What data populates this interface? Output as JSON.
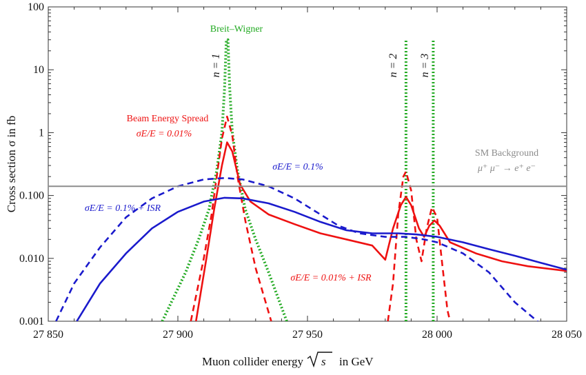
{
  "chart_data": {
    "type": "line",
    "title": "",
    "xlabel": "Muon collider energy",
    "xlabel_symbol": "s",
    "xlabel_unit": "in GeV",
    "ylabel": "Cross section σ in fb",
    "xlim": [
      27850,
      28050
    ],
    "ylim": [
      0.001,
      100
    ],
    "yscale": "log",
    "grid": false,
    "x_ticks": [
      {
        "value": 27850,
        "label": "27 850"
      },
      {
        "value": 27900,
        "label": "27 900"
      },
      {
        "value": 27950,
        "label": "27 950"
      },
      {
        "value": 28000,
        "label": "28 000"
      },
      {
        "value": 28050,
        "label": "28 050"
      }
    ],
    "y_ticks": [
      {
        "value": 0.001,
        "label": "0.001"
      },
      {
        "value": 0.01,
        "label": "0.010"
      },
      {
        "value": 0.1,
        "label": "0.100"
      },
      {
        "value": 1,
        "label": "1"
      },
      {
        "value": 10,
        "label": "10"
      },
      {
        "value": 100,
        "label": "100"
      }
    ],
    "series": [
      {
        "key": "bw",
        "color": "#22aa22",
        "style": "dotted",
        "points": [
          [
            27894,
            0.001
          ],
          [
            27903,
            0.006
          ],
          [
            27908,
            0.02
          ],
          [
            27912,
            0.06
          ],
          [
            27915,
            0.25
          ],
          [
            27917,
            1.0
          ],
          [
            27918,
            5
          ],
          [
            27918.7,
            30
          ],
          [
            27919.3,
            30
          ],
          [
            27920,
            5
          ],
          [
            27921,
            1.0
          ],
          [
            27923,
            0.25
          ],
          [
            27926,
            0.06
          ],
          [
            27930,
            0.02
          ],
          [
            27935,
            0.006
          ],
          [
            27942,
            0.001
          ]
        ],
        "spikes": [
          27988,
          27998.5
        ]
      },
      {
        "key": "spread_001",
        "color": "#ee1111",
        "style": "dashed",
        "points": [
          [
            27905,
            0.001
          ],
          [
            27910,
            0.01
          ],
          [
            27913,
            0.05
          ],
          [
            27915,
            0.2
          ],
          [
            27917,
            0.8
          ],
          [
            27919,
            1.8
          ],
          [
            27921,
            0.9
          ],
          [
            27923,
            0.2
          ],
          [
            27926,
            0.04
          ],
          [
            27930,
            0.007
          ],
          [
            27936,
            0.001
          ],
          null,
          [
            27981,
            0.001
          ],
          [
            27983,
            0.004
          ],
          [
            27985,
            0.05
          ],
          [
            27987,
            0.2
          ],
          [
            27988,
            0.24
          ],
          [
            27990,
            0.12
          ],
          [
            27992,
            0.02
          ],
          [
            27994,
            0.009
          ],
          [
            27996,
            0.03
          ],
          [
            27998,
            0.065
          ],
          [
            28000,
            0.045
          ],
          [
            28002,
            0.008
          ],
          [
            28004,
            0.0015
          ],
          [
            28005,
            0.001
          ]
        ]
      },
      {
        "key": "spread_001_isr",
        "color": "#ee1111",
        "style": "solid",
        "points": [
          [
            27907,
            0.001
          ],
          [
            27911,
            0.01
          ],
          [
            27914,
            0.06
          ],
          [
            27917,
            0.3
          ],
          [
            27919,
            0.7
          ],
          [
            27921,
            0.5
          ],
          [
            27924,
            0.15
          ],
          [
            27928,
            0.08
          ],
          [
            27935,
            0.05
          ],
          [
            27945,
            0.035
          ],
          [
            27955,
            0.025
          ],
          [
            27965,
            0.02
          ],
          [
            27975,
            0.016
          ],
          [
            27980,
            0.0095
          ],
          [
            27983,
            0.03
          ],
          [
            27986,
            0.07
          ],
          [
            27988,
            0.095
          ],
          [
            27990,
            0.07
          ],
          [
            27993,
            0.03
          ],
          [
            27995,
            0.022
          ],
          [
            27997,
            0.033
          ],
          [
            27999,
            0.04
          ],
          [
            28001,
            0.033
          ],
          [
            28005,
            0.018
          ],
          [
            28015,
            0.012
          ],
          [
            28025,
            0.009
          ],
          [
            28035,
            0.0075
          ],
          [
            28050,
            0.0063
          ]
        ]
      },
      {
        "key": "spread_01",
        "color": "#1a1acc",
        "style": "dashed",
        "points": [
          [
            27853,
            0.001
          ],
          [
            27860,
            0.004
          ],
          [
            27870,
            0.015
          ],
          [
            27880,
            0.045
          ],
          [
            27890,
            0.09
          ],
          [
            27900,
            0.14
          ],
          [
            27910,
            0.18
          ],
          [
            27918,
            0.19
          ],
          [
            27925,
            0.18
          ],
          [
            27935,
            0.14
          ],
          [
            27945,
            0.09
          ],
          [
            27955,
            0.05
          ],
          [
            27962,
            0.033
          ],
          [
            27970,
            0.025
          ],
          [
            27980,
            0.022
          ],
          [
            27988,
            0.022
          ],
          [
            27995,
            0.02
          ],
          [
            28000,
            0.018
          ],
          [
            28010,
            0.012
          ],
          [
            28020,
            0.006
          ],
          [
            28030,
            0.002
          ],
          [
            28040,
            0.0009
          ]
        ]
      },
      {
        "key": "spread_01_isr",
        "color": "#1a1acc",
        "style": "solid",
        "points": [
          [
            27861,
            0.001
          ],
          [
            27870,
            0.004
          ],
          [
            27880,
            0.012
          ],
          [
            27890,
            0.03
          ],
          [
            27900,
            0.055
          ],
          [
            27910,
            0.08
          ],
          [
            27918,
            0.092
          ],
          [
            27925,
            0.09
          ],
          [
            27935,
            0.075
          ],
          [
            27945,
            0.055
          ],
          [
            27955,
            0.038
          ],
          [
            27965,
            0.028
          ],
          [
            27975,
            0.025
          ],
          [
            27985,
            0.025
          ],
          [
            27992,
            0.024
          ],
          [
            28000,
            0.022
          ],
          [
            28010,
            0.018
          ],
          [
            28020,
            0.014
          ],
          [
            28030,
            0.011
          ],
          [
            28040,
            0.0085
          ],
          [
            28050,
            0.0066
          ]
        ]
      },
      {
        "key": "sm_background",
        "color": "#8c8c8c",
        "style": "solid",
        "points": [
          [
            27850,
            0.14
          ],
          [
            28050,
            0.14
          ]
        ]
      }
    ],
    "labels": {
      "breit_wigner": "Breit–Wigner",
      "n1": "n = 1",
      "n2": "n = 2",
      "n3": "n = 3",
      "beam_spread_title": "Beam Energy Spread",
      "spread_001": "σE/E = 0.01%",
      "spread_01": "σE/E = 0.1%",
      "spread_01_isr": "σE/E = 0.1% + ISR",
      "spread_001_isr": "σE/E = 0.01% + ISR",
      "sm_title": "SM Background",
      "sm_process": "μ⁺ μ⁻ → e⁺ e⁻"
    }
  }
}
